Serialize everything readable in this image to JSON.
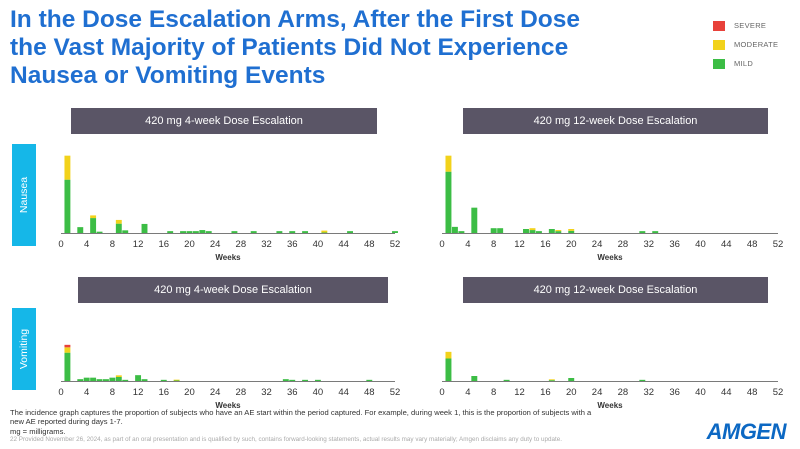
{
  "title": {
    "line1": "In the Dose Escalation Arms, After the First Dose",
    "line2": "the Vast Majority of Patients Did Not Experience",
    "line3": "Nausea or Vomiting Events"
  },
  "legend": [
    {
      "label": "SEVERE",
      "color": "#e8413a"
    },
    {
      "label": "MODERATE",
      "color": "#f2d21b"
    },
    {
      "label": "MILD",
      "color": "#3cbd45"
    }
  ],
  "rows": {
    "nausea": "Nausea",
    "vomiting": "Vomiting"
  },
  "panel_titles": {
    "nausea_4wk": "420 mg 4-week Dose Escalation",
    "nausea_12wk": "420 mg 12-week Dose Escalation",
    "vomiting_4wk": "420 mg 4-week Dose Escalation",
    "vomiting_12wk": "420 mg 12-week Dose Escalation"
  },
  "chart_data": [
    {
      "id": "nausea_4wk",
      "type": "bar",
      "stacked": true,
      "title": "420 mg 4-week Dose Escalation",
      "row": "Nausea",
      "xlabel": "Weeks",
      "xlim": [
        0,
        52
      ],
      "xticks": [
        0,
        4,
        8,
        12,
        16,
        20,
        24,
        28,
        32,
        36,
        40,
        44,
        48,
        52
      ],
      "ylim": [
        0,
        30
      ],
      "bars": [
        {
          "week": 1,
          "mild": 20,
          "moderate": 9,
          "severe": 0
        },
        {
          "week": 3,
          "mild": 2.2,
          "moderate": 0,
          "severe": 0
        },
        {
          "week": 5,
          "mild": 5.6,
          "moderate": 1,
          "severe": 0
        },
        {
          "week": 6,
          "mild": 0.5,
          "moderate": 0,
          "severe": 0
        },
        {
          "week": 9,
          "mild": 3.5,
          "moderate": 1.4,
          "severe": 0
        },
        {
          "week": 10,
          "mild": 1,
          "moderate": 0,
          "severe": 0
        },
        {
          "week": 13,
          "mild": 3.4,
          "moderate": 0,
          "severe": 0
        },
        {
          "week": 17,
          "mild": 0.7,
          "moderate": 0,
          "severe": 0
        },
        {
          "week": 19,
          "mild": 0.7,
          "moderate": 0,
          "severe": 0
        },
        {
          "week": 20,
          "mild": 0.7,
          "moderate": 0,
          "severe": 0
        },
        {
          "week": 21,
          "mild": 0.7,
          "moderate": 0,
          "severe": 0
        },
        {
          "week": 22,
          "mild": 1.1,
          "moderate": 0,
          "severe": 0
        },
        {
          "week": 23,
          "mild": 0.7,
          "moderate": 0,
          "severe": 0
        },
        {
          "week": 27,
          "mild": 0.7,
          "moderate": 0,
          "severe": 0
        },
        {
          "week": 30,
          "mild": 0.7,
          "moderate": 0,
          "severe": 0
        },
        {
          "week": 34,
          "mild": 0.7,
          "moderate": 0,
          "severe": 0
        },
        {
          "week": 36,
          "mild": 0.7,
          "moderate": 0,
          "severe": 0
        },
        {
          "week": 38,
          "mild": 0.7,
          "moderate": 0,
          "severe": 0
        },
        {
          "week": 41,
          "mild": 0.2,
          "moderate": 0.7,
          "severe": 0
        },
        {
          "week": 45,
          "mild": 0.7,
          "moderate": 0,
          "severe": 0
        },
        {
          "week": 52,
          "mild": 0.7,
          "moderate": 0,
          "severe": 0
        }
      ]
    },
    {
      "id": "nausea_12wk",
      "type": "bar",
      "stacked": true,
      "title": "420 mg 12-week Dose Escalation",
      "row": "Nausea",
      "xlabel": "Weeks",
      "xlim": [
        0,
        52
      ],
      "xticks": [
        0,
        4,
        8,
        12,
        16,
        20,
        24,
        28,
        32,
        36,
        40,
        44,
        48,
        52
      ],
      "ylim": [
        0,
        30
      ],
      "bars": [
        {
          "week": 1,
          "mild": 23,
          "moderate": 6,
          "severe": 0
        },
        {
          "week": 2,
          "mild": 2.3,
          "moderate": 0,
          "severe": 0
        },
        {
          "week": 3,
          "mild": 0.7,
          "moderate": 0,
          "severe": 0
        },
        {
          "week": 5,
          "mild": 9.5,
          "moderate": 0,
          "severe": 0
        },
        {
          "week": 8,
          "mild": 1.8,
          "moderate": 0,
          "severe": 0
        },
        {
          "week": 9,
          "mild": 1.8,
          "moderate": 0,
          "severe": 0
        },
        {
          "week": 13,
          "mild": 1.5,
          "moderate": 0,
          "severe": 0
        },
        {
          "week": 14,
          "mild": 1.1,
          "moderate": 0.7,
          "severe": 0
        },
        {
          "week": 15,
          "mild": 0.7,
          "moderate": 0,
          "severe": 0
        },
        {
          "week": 17,
          "mild": 1.5,
          "moderate": 0,
          "severe": 0
        },
        {
          "week": 18,
          "mild": 0.7,
          "moderate": 0.4,
          "severe": 0
        },
        {
          "week": 20,
          "mild": 0.8,
          "moderate": 0.7,
          "severe": 0
        },
        {
          "week": 31,
          "mild": 0.7,
          "moderate": 0,
          "severe": 0
        },
        {
          "week": 33,
          "mild": 0.7,
          "moderate": 0,
          "severe": 0
        }
      ]
    },
    {
      "id": "vomiting_4wk",
      "type": "bar",
      "stacked": true,
      "title": "420 mg 4-week Dose Escalation",
      "row": "Vomiting",
      "xlabel": "Weeks",
      "xlim": [
        0,
        52
      ],
      "xticks": [
        0,
        4,
        8,
        12,
        16,
        20,
        24,
        28,
        32,
        36,
        40,
        44,
        48,
        52
      ],
      "ylim": [
        0,
        30
      ],
      "bars": [
        {
          "week": 1,
          "mild": 17,
          "moderate": 3.2,
          "severe": 1.5
        },
        {
          "week": 3,
          "mild": 1.1,
          "moderate": 0,
          "severe": 0
        },
        {
          "week": 4,
          "mild": 2,
          "moderate": 0,
          "severe": 0
        },
        {
          "week": 5,
          "mild": 2,
          "moderate": 0,
          "severe": 0
        },
        {
          "week": 6,
          "mild": 1.1,
          "moderate": 0,
          "severe": 0
        },
        {
          "week": 7,
          "mild": 1.1,
          "moderate": 0,
          "severe": 0
        },
        {
          "week": 8,
          "mild": 2,
          "moderate": 0,
          "severe": 0
        },
        {
          "week": 9,
          "mild": 2.4,
          "moderate": 1,
          "severe": 0
        },
        {
          "week": 10,
          "mild": 0.7,
          "moderate": 0,
          "severe": 0
        },
        {
          "week": 12,
          "mild": 3.5,
          "moderate": 0,
          "severe": 0
        },
        {
          "week": 13,
          "mild": 1.1,
          "moderate": 0,
          "severe": 0
        },
        {
          "week": 16,
          "mild": 0.7,
          "moderate": 0,
          "severe": 0
        },
        {
          "week": 18,
          "mild": 0.3,
          "moderate": 0.5,
          "severe": 0
        },
        {
          "week": 35,
          "mild": 1.1,
          "moderate": 0,
          "severe": 0
        },
        {
          "week": 36,
          "mild": 0.7,
          "moderate": 0,
          "severe": 0
        },
        {
          "week": 38,
          "mild": 0.7,
          "moderate": 0,
          "severe": 0
        },
        {
          "week": 40,
          "mild": 0.7,
          "moderate": 0,
          "severe": 0
        },
        {
          "week": 48,
          "mild": 0.7,
          "moderate": 0,
          "severe": 0
        }
      ]
    },
    {
      "id": "vomiting_12wk",
      "type": "bar",
      "stacked": true,
      "title": "420 mg 12-week Dose Escalation",
      "row": "Vomiting",
      "xlabel": "Weeks",
      "xlim": [
        0,
        52
      ],
      "xticks": [
        0,
        4,
        8,
        12,
        16,
        20,
        24,
        28,
        32,
        36,
        40,
        44,
        48,
        52
      ],
      "ylim": [
        0,
        30
      ],
      "bars": [
        {
          "week": 1,
          "mild": 13.5,
          "moderate": 4,
          "severe": 0
        },
        {
          "week": 5,
          "mild": 3,
          "moderate": 0,
          "severe": 0
        },
        {
          "week": 10,
          "mild": 0.7,
          "moderate": 0,
          "severe": 0
        },
        {
          "week": 17,
          "mild": 0.5,
          "moderate": 0.5,
          "severe": 0
        },
        {
          "week": 20,
          "mild": 1.8,
          "moderate": 0,
          "severe": 0
        },
        {
          "week": 31,
          "mild": 0.7,
          "moderate": 0,
          "severe": 0
        }
      ]
    }
  ],
  "footnote": {
    "line1": "The incidence graph captures the proportion of subjects who have an AE start within the period captured.  For example, during week 1, this is the proportion of subjects with a",
    "line2": "new AE reported during days 1-7.",
    "line3": "mg = milligrams."
  },
  "disclaimer": "22   Provided November 26, 2024, as part of an oral presentation and is qualified by such, contains forward-looking statements, actual results may vary materially; Amgen disclaims any duty to update.",
  "logo": "AMGEN"
}
